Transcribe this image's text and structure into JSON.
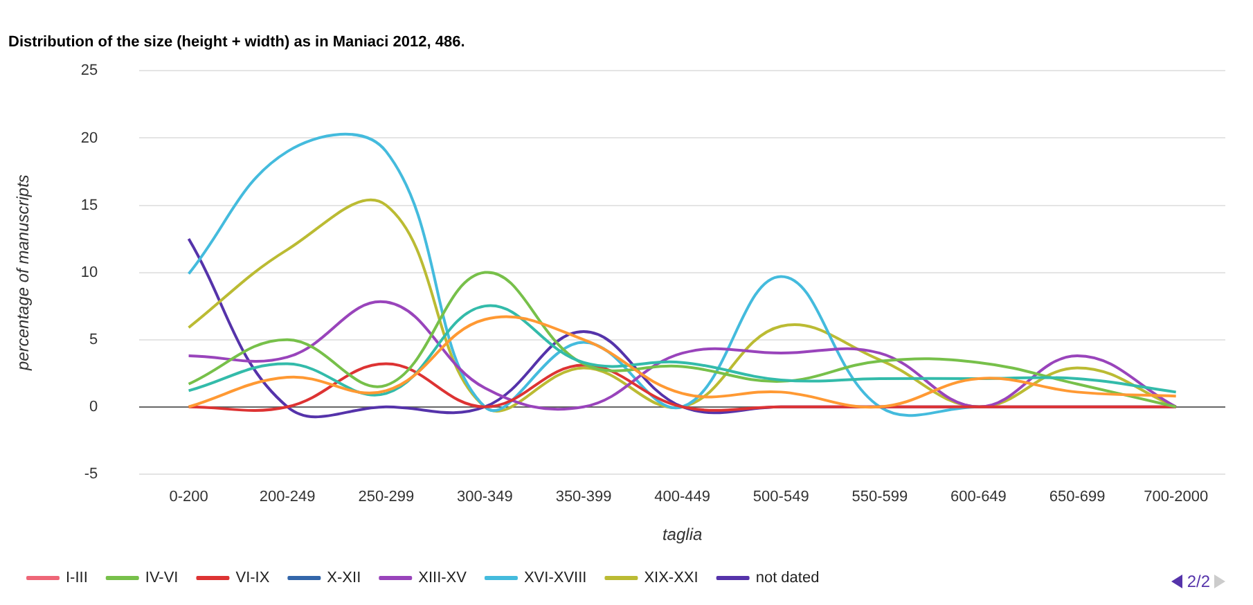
{
  "chart_data": {
    "type": "line",
    "title": "Distribution of the size (height + width) as in Maniaci 2012, 486.",
    "xlabel": "taglia",
    "ylabel": "percentage of manuscripts",
    "categories": [
      "0-200",
      "200-249",
      "250-299",
      "300-349",
      "350-399",
      "400-449",
      "500-549",
      "550-599",
      "600-649",
      "650-699",
      "700-2000"
    ],
    "series": [
      {
        "color": "#ff9933",
        "values": [
          0,
          2.2,
          1.2,
          6.5,
          5,
          1,
          1.1,
          0,
          2.1,
          1.1,
          0.8
        ]
      },
      {
        "color": "#33bbaa",
        "values": [
          1.2,
          3.2,
          1,
          7.5,
          3.3,
          3.3,
          2,
          2.1,
          2.1,
          2.1,
          1.1
        ]
      },
      {
        "name": "I-III",
        "color": "#ee6677",
        "values": [
          null,
          null,
          null,
          null,
          null,
          null,
          null,
          null,
          null,
          null,
          null
        ]
      },
      {
        "name": "IV-VI",
        "color": "#77c04a",
        "values": [
          1.7,
          5,
          1.6,
          10,
          3.2,
          3,
          1.9,
          3.4,
          3.3,
          1.7,
          0
        ]
      },
      {
        "name": "VI-IX",
        "color": "#dd3333",
        "values": [
          0,
          0,
          3.2,
          0,
          3.1,
          0,
          0,
          0,
          0,
          0,
          0
        ]
      },
      {
        "name": "X-XII",
        "color": "#3366aa",
        "values": [
          null,
          null,
          null,
          null,
          null,
          null,
          null,
          null,
          null,
          null,
          null
        ]
      },
      {
        "name": "XIII-XV",
        "color": "#9944bb",
        "values": [
          3.8,
          3.7,
          7.8,
          1.4,
          0,
          4,
          4,
          4,
          0,
          3.8,
          0
        ]
      },
      {
        "name": "XVI-XVIII",
        "color": "#44bbdd",
        "values": [
          9.9,
          19,
          19,
          0,
          4.8,
          0,
          9.7,
          0,
          0,
          null,
          null
        ]
      },
      {
        "name": "XIX-XXI",
        "color": "#bbbb33",
        "values": [
          5.9,
          11.7,
          15,
          0,
          2.9,
          0,
          6,
          3.5,
          0,
          2.9,
          0
        ]
      },
      {
        "name": "not dated",
        "color": "#5533aa",
        "values": [
          12.5,
          0,
          0,
          0,
          5.6,
          0,
          0,
          0,
          0,
          0,
          0
        ]
      }
    ],
    "ylim": [
      -5,
      25
    ],
    "yticks": [
      -5,
      0,
      5,
      10,
      15,
      20,
      25
    ],
    "grid": "y",
    "legend": "bottom",
    "marker": "none",
    "annotations": [
      "2/2"
    ]
  }
}
